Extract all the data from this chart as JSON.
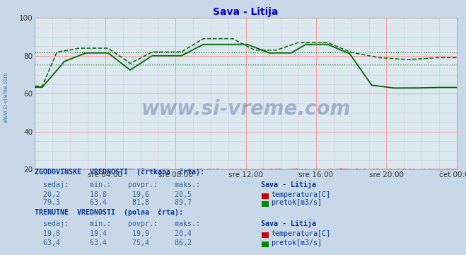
{
  "title": "Sava - Litija",
  "title_color": "#0000cc",
  "bg_color": "#c8d8e8",
  "plot_bg_color": "#dce8f0",
  "grid_color_major": "#ff9999",
  "grid_color_minor": "#ccccdd",
  "xlim": [
    0,
    288
  ],
  "ylim": [
    20,
    100
  ],
  "yticks": [
    20,
    40,
    60,
    80,
    100
  ],
  "xtick_labels": [
    "sre 04:00",
    "sre 08:00",
    "sre 12:00",
    "sre 16:00",
    "sre 20:00",
    "čet 00:00"
  ],
  "xtick_positions": [
    48,
    96,
    144,
    192,
    240,
    288
  ],
  "temp_color": "#cc0000",
  "flow_color": "#006600",
  "watermark_text": "www.si-vreme.com",
  "watermark_color": "#1a3a7a",
  "watermark_alpha": 0.3,
  "sidebar_text": "www.si-vreme.com",
  "sidebar_color": "#1a6688",
  "hist_avg_flow": 81.8,
  "curr_avg_flow": 75.4,
  "hist_min_temp": 18.8,
  "hist_avg_temp": 19.6,
  "hist_max_temp": 20.5,
  "hist_curr_temp": 20.2,
  "hist_min_flow": 63.4,
  "hist_max_flow": 89.7,
  "hist_curr_flow": 79.3,
  "curr_min_temp": 19.4,
  "curr_avg_temp": 19.9,
  "curr_max_temp": 20.4,
  "curr_now_temp": 19.8,
  "curr_min_flow": 63.4,
  "curr_max_flow": 86.2,
  "curr_avg_flow2": 75.4,
  "curr_now_flow": 63.4
}
